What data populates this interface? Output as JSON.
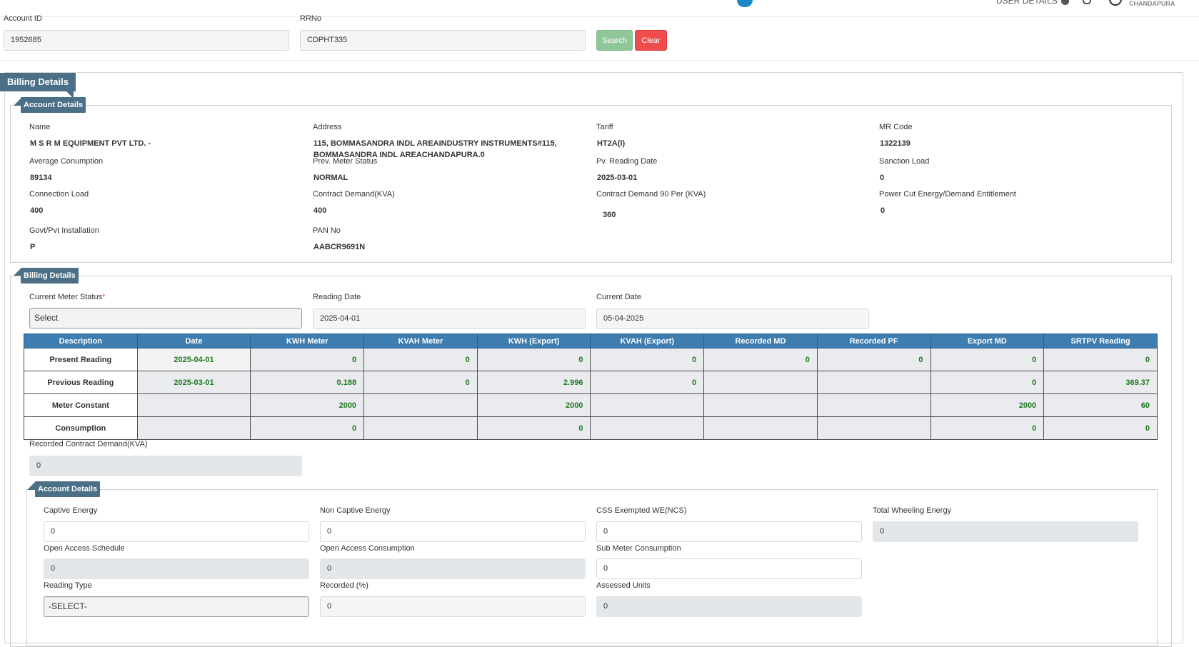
{
  "header": {
    "user_details": "USER DETAILS",
    "user_name": "CHANDAPURA"
  },
  "search": {
    "account_id_label": "Account ID",
    "account_id_value": "1952685",
    "rrno_label": "RRNo",
    "rrno_value": "CDPHT335",
    "search_label": "Search",
    "clear_label": "Clear"
  },
  "billing_header": "Billing Details",
  "account_details": {
    "title": "Account Details",
    "fields": {
      "name_label": "Name",
      "name_value": "M S R M EQUIPMENT PVT LTD. -",
      "address_label": "Address",
      "address_value": "115, BOMMASANDRA INDL AREAINDUSTRY INSTRUMENTS#115, BOMMASANDRA INDL AREACHANDAPURA.0",
      "tariff_label": "Tariff",
      "tariff_value": "HT2A(I)",
      "mr_code_label": "MR Code",
      "mr_code_value": "1322139",
      "avg_consumption_label": "Average Conumption",
      "avg_consumption_value": "89134",
      "prev_meter_status_label": "Prev. Meter Status",
      "prev_meter_status_value": "NORMAL",
      "pv_reading_date_label": "Pv. Reading Date",
      "pv_reading_date_value": "2025-03-01",
      "sanction_load_label": "Sanction Load",
      "sanction_load_value": "0",
      "connection_load_label": "Connection Load",
      "connection_load_value": "400",
      "contract_demand_label": "Contract Demand(KVA)",
      "contract_demand_value": "400",
      "contract_demand_90_label": "Contract Demand 90 Per (KVA)",
      "contract_demand_90_value": "360",
      "power_cut_label": "Power Cut Energy/Demand Entitlement",
      "power_cut_value": "0",
      "govt_pvt_label": "Govt/Pvt Installation",
      "govt_pvt_value": "P",
      "pan_label": "PAN No",
      "pan_value": "AABCR9691N"
    }
  },
  "billing_details": {
    "title": "Billing Details",
    "current_meter_status_label": "Current Meter Status",
    "current_meter_status_value": "Select",
    "reading_date_label": "Reading Date",
    "reading_date_value": "2025-04-01",
    "current_date_label": "Current Date",
    "current_date_value": "05-04-2025",
    "table": {
      "headers": [
        "Description",
        "Date",
        "KWH Meter",
        "KVAH Meter",
        "KWH (Export)",
        "KVAH (Export)",
        "Recorded MD",
        "Recorded PF",
        "Export MD",
        "SRTPV Reading"
      ],
      "rows": [
        [
          "Present Reading",
          "2025-04-01",
          "0",
          "0",
          "0",
          "0",
          "0",
          "0",
          "0",
          "0"
        ],
        [
          "Previous Reading",
          "2025-03-01",
          "0.188",
          "0",
          "2.996",
          "0",
          "",
          "",
          "0",
          "369.37"
        ],
        [
          "Meter Constant",
          "",
          "2000",
          "",
          "2000",
          "",
          "",
          "",
          "2000",
          "60"
        ],
        [
          "Consumption",
          "",
          "0",
          "",
          "0",
          "",
          "",
          "",
          "0",
          "0"
        ]
      ]
    },
    "recorded_cd_label": "Recorded Contract Demand(KVA)",
    "recorded_cd_value": "0"
  },
  "energy_details": {
    "title": "Account Details",
    "captive_energy_label": "Captive Energy",
    "captive_energy_value": "0",
    "non_captive_energy_label": "Non Captive Energy",
    "non_captive_energy_value": "0",
    "css_exempted_label": "CSS Exempted WE(NCS)",
    "css_exempted_value": "0",
    "total_wheeling_label": "Total Wheeling Energy",
    "total_wheeling_value": "0",
    "open_access_schedule_label": "Open Access Schedule",
    "open_access_schedule_value": "0",
    "open_access_consumption_label": "Open Access Consumption",
    "open_access_consumption_value": "0",
    "sub_meter_consumption_label": "Sub Meter Consumption",
    "sub_meter_consumption_value": "0",
    "reading_type_label": "Reading Type",
    "reading_type_value": "-SELECT-",
    "recorded_pct_label": "Recorded (%)",
    "recorded_pct_value": "0",
    "assessed_units_label": "Assessed Units",
    "assessed_units_value": "0"
  }
}
